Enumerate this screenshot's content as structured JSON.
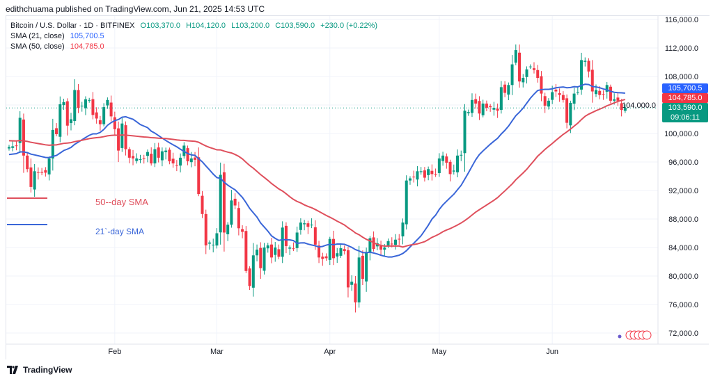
{
  "header": {
    "publisher": "edithchuama published on TradingView.com, Jun 21, 2025 14:53 UTC",
    "symbol": "Bitcoin / U.S. Dollar · 1D · BITFINEX",
    "open": "O103,370.0",
    "high": "H104,120.0",
    "low": "L103,200.0",
    "close": "C103,590.0",
    "change": "+230.0 (+0.22%)",
    "sma21_label": "SMA (21, close)",
    "sma21_value": "105,700.5",
    "sma50_label": "SMA (50, close)",
    "sma50_value": "104,785.0"
  },
  "price_tags": {
    "sma21": "105,700.5",
    "sma50": "104,785.0",
    "last": "103,590.0",
    "countdown": "09:06:11"
  },
  "annotations": {
    "sma50": "50--day SMA",
    "sma21": "21`-day SMA"
  },
  "footer": {
    "brand": "TradingView"
  },
  "colors": {
    "up": "#089981",
    "down": "#f23645",
    "sma21": "#3a66d8",
    "sma50": "#df4f5c"
  },
  "chart_data": {
    "type": "candlestick",
    "title": "Bitcoin / U.S. Dollar · 1D · BITFINEX",
    "unit": "thousand USD",
    "closes": [
      98.1,
      98.2,
      98.3,
      102.2,
      96.9,
      95.0,
      92.5,
      94.7,
      94.5,
      94.5,
      94.5,
      96.5,
      100.5,
      99.9,
      104.1,
      104.4,
      101.1,
      102.0,
      106.1,
      103.6,
      103.9,
      104.8,
      104.7,
      102.6,
      102.1,
      101.3,
      103.7,
      104.7,
      102.4,
      100.6,
      97.6,
      101.4,
      97.8,
      96.6,
      96.5,
      96.5,
      96.4,
      96.5,
      97.4,
      95.8,
      97.8,
      96.6,
      97.5,
      97.6,
      96.1,
      95.8,
      95.5,
      96.6,
      98.3,
      96.1,
      96.5,
      96.3,
      91.5,
      88.7,
      84.3,
      84.7,
      84.4,
      86.0,
      94.2,
      86.1,
      87.2,
      90.6,
      89.9,
      86.7,
      86.2,
      80.7,
      78.6,
      82.9,
      83.7,
      81.1,
      84.0,
      84.3,
      82.6,
      84.0,
      82.7,
      86.8,
      84.2,
      84.0,
      83.8,
      86.1,
      87.5,
      87.4,
      86.9,
      87.2,
      84.4,
      82.6,
      82.4,
      82.5,
      85.2,
      82.5,
      83.2,
      83.9,
      83.5,
      78.4,
      79.2,
      76.3,
      82.6,
      79.6,
      83.4,
      85.3,
      83.8,
      84.6,
      83.7,
      84.0,
      84.9,
      84.5,
      85.1,
      85.2,
      87.5,
      93.4,
      93.7,
      93.9,
      94.7,
      94.7,
      93.8,
      95.0,
      94.3,
      94.2,
      96.5,
      96.9,
      95.9,
      94.3,
      94.8,
      96.9,
      97.0,
      103.2,
      103.0,
      104.7,
      104.2,
      102.8,
      104.2,
      103.6,
      103.7,
      103.6,
      103.2,
      106.5,
      105.7,
      106.8,
      109.7,
      111.7,
      107.3,
      107.8,
      109.0,
      109.4,
      108.9,
      107.8,
      105.6,
      103.9,
      104.6,
      105.8,
      105.9,
      105.4,
      104.7,
      101.5,
      104.3,
      105.6,
      105.8,
      110.3,
      110.2,
      108.7,
      105.9,
      106.1,
      105.4,
      105.5,
      106.8,
      104.6,
      104.8,
      104.6,
      103.3,
      103.6
    ],
    "series": [
      {
        "name": "SMA (21, close)",
        "period": 21
      },
      {
        "name": "SMA (50, close)",
        "period": 50
      }
    ],
    "y_ticks": [
      "72,000.0",
      "76,000.0",
      "80,000.0",
      "84,000.0",
      "88,000.0",
      "92,000.0",
      "96,000.0",
      "100,000.0",
      "104,000.0",
      "108,000.0",
      "112,000.0",
      "116,000.0"
    ],
    "y_tick_values": [
      72,
      76,
      80,
      84,
      88,
      92,
      96,
      100,
      104,
      108,
      112,
      116
    ],
    "ylim": [
      71,
      117
    ],
    "x_ticks": [
      "Feb",
      "Mar",
      "Apr",
      "May",
      "Jun"
    ],
    "x_tick_index": [
      29,
      57,
      88,
      118,
      149
    ],
    "last_price": 103.59,
    "grid": true
  }
}
